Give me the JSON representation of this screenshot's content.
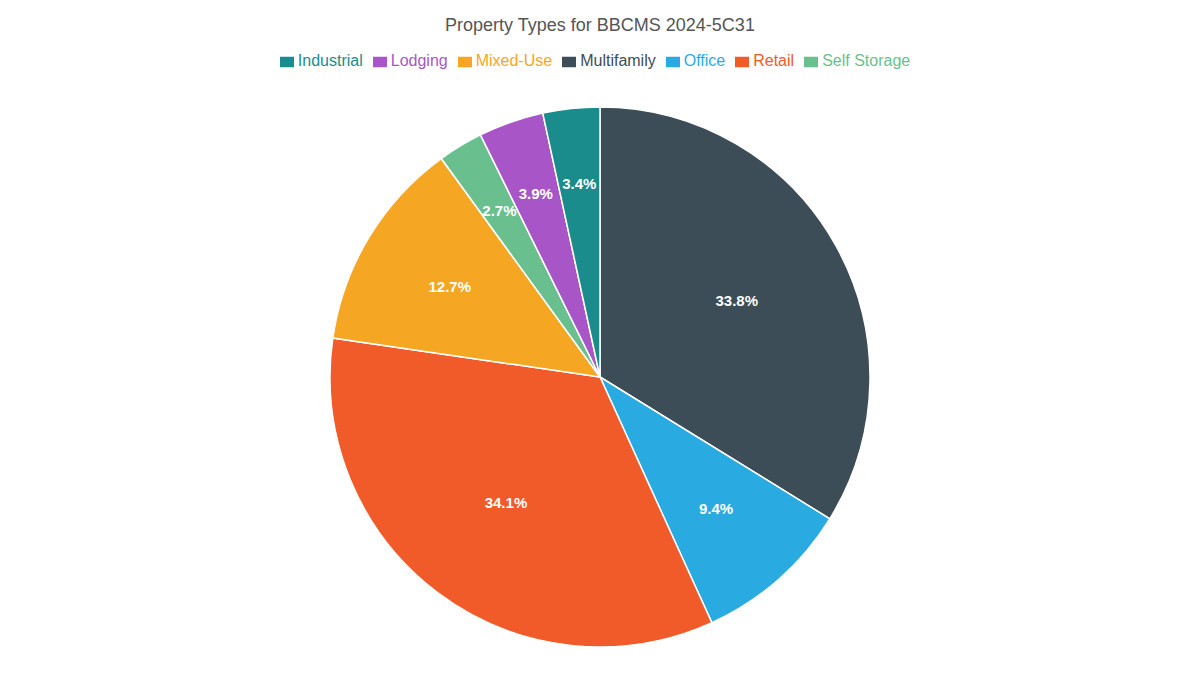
{
  "chart_data": {
    "type": "pie",
    "title": "Property Types for BBCMS 2024-5C31",
    "categories": [
      "Multifamily",
      "Office",
      "Retail",
      "Mixed-Use",
      "Self Storage",
      "Lodging",
      "Industrial"
    ],
    "values": [
      33.8,
      9.4,
      34.1,
      12.7,
      2.7,
      3.9,
      3.4
    ],
    "value_labels": [
      "33.8%",
      "9.4%",
      "34.1%",
      "12.7%",
      "2.7%",
      "3.9%",
      "3.4%"
    ],
    "colors": [
      "#3d4d57",
      "#29abe2",
      "#f15a29",
      "#f5a623",
      "#6abf8e",
      "#a855c8",
      "#1a8c8c"
    ],
    "data_labels": true,
    "legend": "top"
  }
}
